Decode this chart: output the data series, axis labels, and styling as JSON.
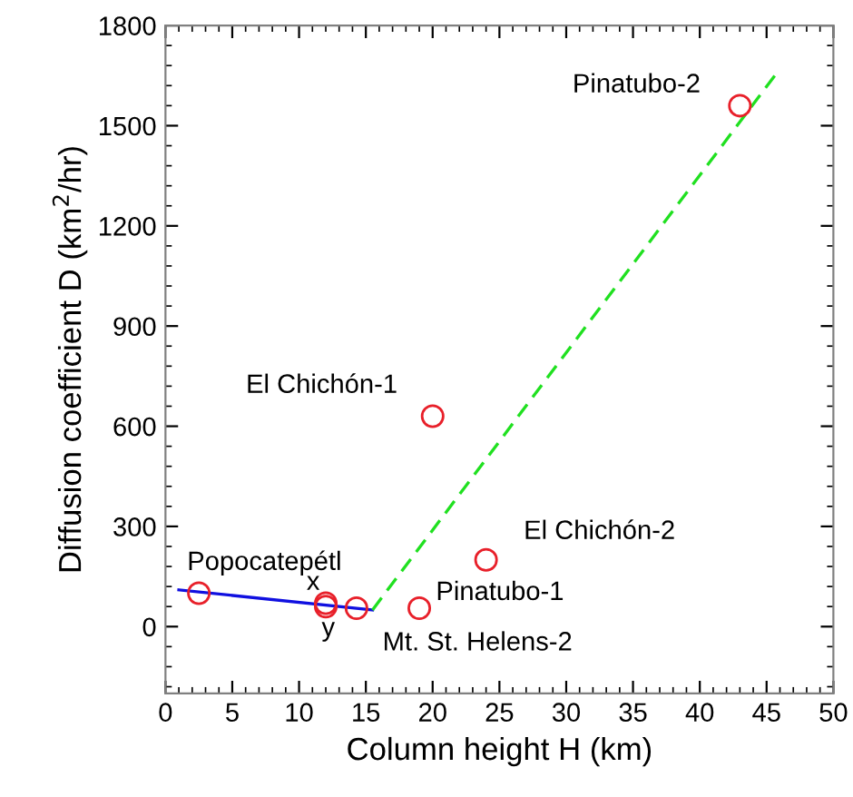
{
  "chart_data": {
    "type": "scatter",
    "xlabel": "Column height H (km)",
    "ylabel": "Diffusion coefficient D (km$^{2}$/hr)",
    "xlim": [
      0,
      50
    ],
    "xticks": [
      0,
      5,
      10,
      15,
      20,
      25,
      30,
      35,
      40,
      45,
      50
    ],
    "ylim": [
      -200,
      1800
    ],
    "yticks": [
      0,
      300,
      600,
      900,
      1200,
      1500,
      1800
    ],
    "grid": false,
    "marker": "circle",
    "series": [
      {
        "color": "#e8202a",
        "x": [
          2.5,
          12,
          12,
          14.3,
          19,
          20,
          24,
          43
        ],
        "values": [
          100,
          60,
          70,
          55,
          55,
          630,
          200,
          1560
        ]
      },
      {
        "type": "line",
        "color": "#1010e0",
        "line_style": "solid",
        "marker": "none",
        "x": [
          1,
          15.5
        ],
        "values": [
          110,
          50
        ]
      },
      {
        "type": "line",
        "color": "#20e020",
        "line_style": "dashed",
        "marker": "none",
        "x": [
          15.5,
          45.8
        ],
        "values": [
          50,
          1660
        ]
      }
    ],
    "annotations": [
      {
        "text": "Pinatubo-2",
        "x": 43,
        "y": 1560
      },
      {
        "text": "El Chichón-1",
        "x": 20,
        "y": 630
      },
      {
        "text": "El Chichón-2",
        "x": 24,
        "y": 200
      },
      {
        "text": "Pinatubo-1",
        "x": 19,
        "y": 55
      },
      {
        "text": "Mt. St. Helens-2",
        "x": 14.3,
        "y": 55
      },
      {
        "text": "Popocatepétl",
        "x": 2.5,
        "y": 100
      },
      {
        "text": "x",
        "x": 12,
        "y": 70
      },
      {
        "text": "y",
        "x": 12,
        "y": 60
      }
    ]
  }
}
